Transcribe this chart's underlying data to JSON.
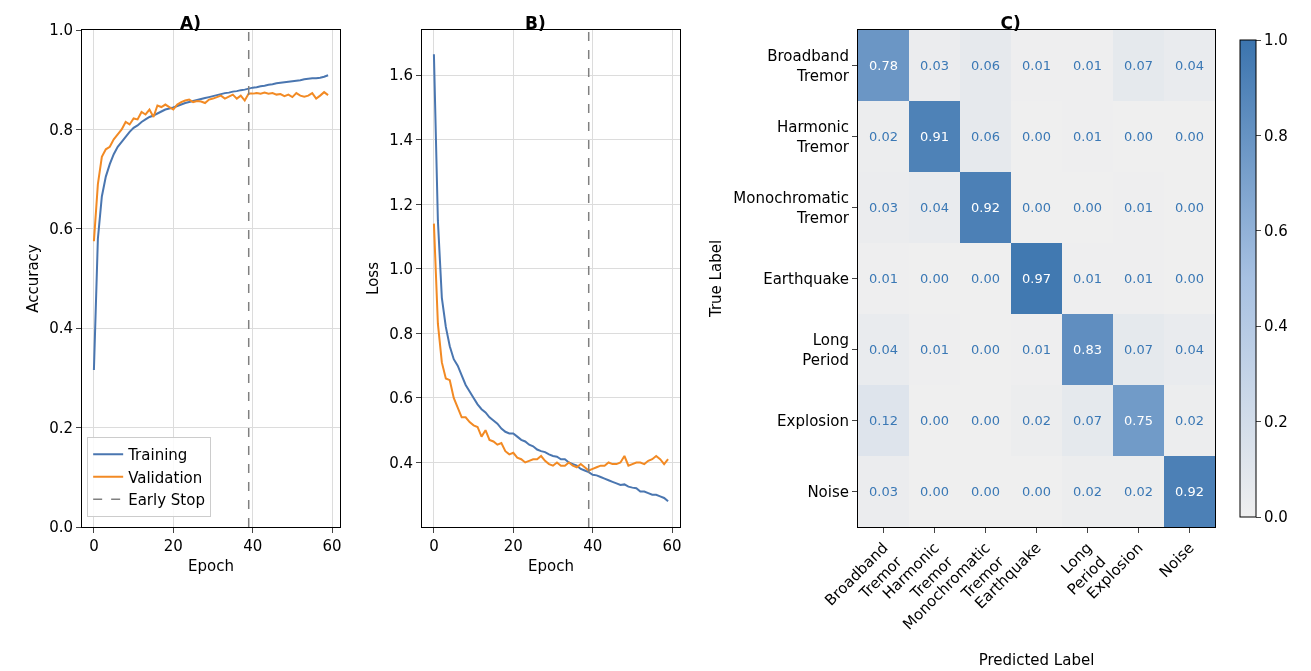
{
  "chart_data": [
    {
      "type": "line",
      "title": "A)",
      "xlabel": "Epoch",
      "ylabel": "Accuracy",
      "xlim": [
        -3,
        62
      ],
      "xticks": [
        0,
        20,
        40,
        60
      ],
      "ylim": [
        0,
        1
      ],
      "yticks": [
        {
          "value": 0,
          "label": "0.0"
        },
        {
          "value": 0.2,
          "label": "0.2"
        },
        {
          "value": 0.4,
          "label": "0.4"
        },
        {
          "value": 0.6,
          "label": "0.6"
        },
        {
          "value": 0.8,
          "label": "0.8"
        },
        {
          "value": 1,
          "label": "1.0"
        }
      ],
      "grid": true,
      "legend": "bottom left",
      "marker": "none",
      "line_style": "solid",
      "x": [
        0,
        1,
        2,
        3,
        4,
        5,
        6,
        7,
        8,
        9,
        10,
        11,
        12,
        13,
        14,
        15,
        16,
        17,
        18,
        19,
        20,
        21,
        22,
        23,
        24,
        25,
        26,
        27,
        28,
        29,
        30,
        31,
        32,
        33,
        34,
        35,
        36,
        37,
        38,
        39,
        40,
        41,
        42,
        43,
        44,
        45,
        46,
        47,
        48,
        49,
        50,
        51,
        52,
        53,
        54,
        55,
        56,
        57,
        58,
        59
      ],
      "series": [
        {
          "name": "Training",
          "color": "#4a76b0",
          "values": [
            0.316,
            0.58,
            0.665,
            0.705,
            0.73,
            0.75,
            0.765,
            0.775,
            0.785,
            0.795,
            0.803,
            0.808,
            0.815,
            0.82,
            0.825,
            0.828,
            0.832,
            0.836,
            0.84,
            0.842,
            0.844,
            0.847,
            0.85,
            0.853,
            0.855,
            0.857,
            0.859,
            0.861,
            0.863,
            0.865,
            0.867,
            0.869,
            0.871,
            0.873,
            0.874,
            0.876,
            0.877,
            0.879,
            0.88,
            0.882,
            0.884,
            0.885,
            0.887,
            0.888,
            0.89,
            0.891,
            0.893,
            0.894,
            0.895,
            0.896,
            0.897,
            0.898,
            0.899,
            0.901,
            0.902,
            0.903,
            0.903,
            0.904,
            0.906,
            0.909
          ]
        },
        {
          "name": "Validation",
          "color": "#f28a24",
          "values": [
            0.575,
            0.69,
            0.745,
            0.76,
            0.765,
            0.78,
            0.79,
            0.8,
            0.815,
            0.81,
            0.822,
            0.82,
            0.835,
            0.83,
            0.84,
            0.825,
            0.848,
            0.845,
            0.85,
            0.845,
            0.84,
            0.85,
            0.855,
            0.858,
            0.86,
            0.855,
            0.857,
            0.856,
            0.853,
            0.86,
            0.862,
            0.865,
            0.868,
            0.862,
            0.866,
            0.87,
            0.862,
            0.868,
            0.858,
            0.872,
            0.872,
            0.873,
            0.872,
            0.874,
            0.872,
            0.873,
            0.87,
            0.871,
            0.867,
            0.87,
            0.865,
            0.873,
            0.868,
            0.866,
            0.868,
            0.873,
            0.862,
            0.868,
            0.875,
            0.869
          ]
        }
      ],
      "ref_lines": [
        {
          "axis": "x",
          "value": 39,
          "label": "Early Stop",
          "color": "#808080",
          "line_style": "dashed"
        }
      ]
    },
    {
      "type": "line",
      "title": "B)",
      "xlabel": "Epoch",
      "ylabel": "Loss",
      "xlim": [
        -3,
        62
      ],
      "xticks": [
        0,
        20,
        40,
        60
      ],
      "ylim": [
        0.2,
        1.74
      ],
      "yticks": [
        {
          "value": 0.4,
          "label": "0.4"
        },
        {
          "value": 0.6,
          "label": "0.6"
        },
        {
          "value": 0.8,
          "label": "0.8"
        },
        {
          "value": 1,
          "label": "1.0"
        },
        {
          "value": 1.2,
          "label": "1.2"
        },
        {
          "value": 1.4,
          "label": "1.4"
        },
        {
          "value": 1.6,
          "label": "1.6"
        }
      ],
      "grid": true,
      "marker": "none",
      "line_style": "solid",
      "x": [
        0,
        1,
        2,
        3,
        4,
        5,
        6,
        7,
        8,
        9,
        10,
        11,
        12,
        13,
        14,
        15,
        16,
        17,
        18,
        19,
        20,
        21,
        22,
        23,
        24,
        25,
        26,
        27,
        28,
        29,
        30,
        31,
        32,
        33,
        34,
        35,
        36,
        37,
        38,
        39,
        40,
        41,
        42,
        43,
        44,
        45,
        46,
        47,
        48,
        49,
        50,
        51,
        52,
        53,
        54,
        55,
        56,
        57,
        58,
        59
      ],
      "series": [
        {
          "color": "#4a76b0",
          "values": [
            1.665,
            1.15,
            0.91,
            0.82,
            0.76,
            0.72,
            0.7,
            0.67,
            0.64,
            0.62,
            0.6,
            0.58,
            0.565,
            0.555,
            0.54,
            0.53,
            0.52,
            0.505,
            0.495,
            0.49,
            0.49,
            0.48,
            0.47,
            0.465,
            0.455,
            0.45,
            0.44,
            0.435,
            0.432,
            0.425,
            0.42,
            0.418,
            0.41,
            0.41,
            0.4,
            0.395,
            0.39,
            0.38,
            0.375,
            0.37,
            0.362,
            0.36,
            0.355,
            0.35,
            0.345,
            0.34,
            0.335,
            0.33,
            0.332,
            0.325,
            0.322,
            0.32,
            0.31,
            0.31,
            0.305,
            0.3,
            0.3,
            0.295,
            0.29,
            0.28
          ]
        },
        {
          "color": "#f28a24",
          "values": [
            1.14,
            0.83,
            0.71,
            0.66,
            0.655,
            0.6,
            0.57,
            0.54,
            0.54,
            0.525,
            0.515,
            0.51,
            0.48,
            0.5,
            0.47,
            0.465,
            0.455,
            0.46,
            0.435,
            0.425,
            0.43,
            0.415,
            0.41,
            0.4,
            0.405,
            0.41,
            0.41,
            0.42,
            0.405,
            0.395,
            0.39,
            0.4,
            0.39,
            0.39,
            0.4,
            0.39,
            0.385,
            0.395,
            0.385,
            0.375,
            0.38,
            0.385,
            0.39,
            0.39,
            0.4,
            0.395,
            0.395,
            0.4,
            0.42,
            0.39,
            0.395,
            0.4,
            0.4,
            0.395,
            0.405,
            0.41,
            0.42,
            0.41,
            0.395,
            0.41
          ]
        }
      ],
      "ref_lines": [
        {
          "axis": "x",
          "value": 39,
          "color": "#808080",
          "line_style": "dashed"
        }
      ]
    },
    {
      "type": "heatmap",
      "title": "C)",
      "xlabel": "Predicted Label",
      "ylabel": "True Label",
      "categories": [
        "Broadband Tremor",
        "Harmonic Tremor",
        "Monochromatic Tremor",
        "Earthquake",
        "Long Period",
        "Explosion",
        "Noise"
      ],
      "y_categories": [
        "Broadband Tremor",
        "Harmonic Tremor",
        "Monochromatic Tremor",
        "Earthquake",
        "Long Period",
        "Explosion",
        "Noise"
      ],
      "cells": [
        [
          0.78,
          0.03,
          0.06,
          0.01,
          0.01,
          0.07,
          0.04
        ],
        [
          0.02,
          0.91,
          0.06,
          0,
          0.01,
          0,
          0
        ],
        [
          0.03,
          0.04,
          0.92,
          0,
          0,
          0.01,
          0
        ],
        [
          0.01,
          0,
          0,
          0.97,
          0.01,
          0.01,
          0
        ],
        [
          0.04,
          0.01,
          0,
          0.01,
          0.83,
          0.07,
          0.04
        ],
        [
          0.12,
          0,
          0,
          0.02,
          0.07,
          0.75,
          0.02
        ],
        [
          0.03,
          0,
          0,
          0,
          0.02,
          0.02,
          0.92
        ]
      ],
      "cell_labels": [
        [
          "0.78",
          "0.03",
          "0.06",
          "0.01",
          "0.01",
          "0.07",
          "0.04"
        ],
        [
          "0.02",
          "0.91",
          "0.06",
          "0.00",
          "0.01",
          "0.00",
          "0.00"
        ],
        [
          "0.03",
          "0.04",
          "0.92",
          "0.00",
          "0.00",
          "0.01",
          "0.00"
        ],
        [
          "0.01",
          "0.00",
          "0.00",
          "0.97",
          "0.01",
          "0.01",
          "0.00"
        ],
        [
          "0.04",
          "0.01",
          "0.00",
          "0.01",
          "0.83",
          "0.07",
          "0.04"
        ],
        [
          "0.12",
          "0.00",
          "0.00",
          "0.02",
          "0.07",
          "0.75",
          "0.02"
        ],
        [
          "0.03",
          "0.00",
          "0.00",
          "0.00",
          "0.02",
          "0.02",
          "0.92"
        ]
      ],
      "clim": [
        0,
        1
      ],
      "cticks": [
        {
          "value": 0,
          "label": "0.0"
        },
        {
          "value": 0.2,
          "label": "0.2"
        },
        {
          "value": 0.4,
          "label": "0.4"
        },
        {
          "value": 0.6,
          "label": "0.6"
        },
        {
          "value": 0.8,
          "label": "0.8"
        },
        {
          "value": 1,
          "label": "1.0"
        }
      ]
    }
  ]
}
